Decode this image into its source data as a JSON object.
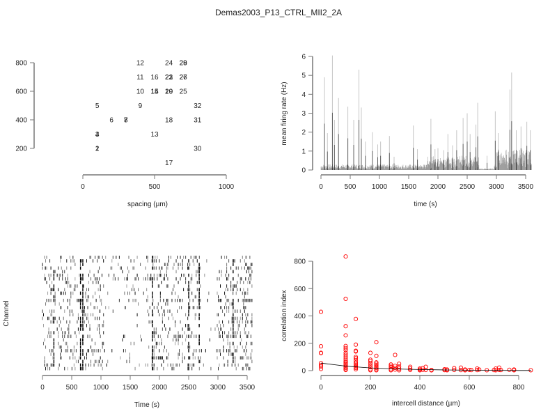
{
  "title": "Demas2003_P13_CTRL_MII2_2A",
  "chart_data": [
    {
      "type": "scatter",
      "name": "electrode-layout",
      "xlabel": "spacing (µm)",
      "ylabel": "",
      "xlim": [
        0,
        1000
      ],
      "ylim": [
        100,
        800
      ],
      "xticks": [
        0,
        500,
        1000
      ],
      "yticks": [
        200,
        400,
        600,
        800
      ],
      "points": [
        {
          "label": "1",
          "x": 100,
          "y": 200
        },
        {
          "label": "2",
          "x": 100,
          "y": 200
        },
        {
          "label": "3",
          "x": 100,
          "y": 300
        },
        {
          "label": "4",
          "x": 100,
          "y": 300
        },
        {
          "label": "5",
          "x": 100,
          "y": 500
        },
        {
          "label": "6",
          "x": 200,
          "y": 400
        },
        {
          "label": "7",
          "x": 300,
          "y": 400
        },
        {
          "label": "8",
          "x": 300,
          "y": 400
        },
        {
          "label": "9",
          "x": 400,
          "y": 500
        },
        {
          "label": "10",
          "x": 400,
          "y": 600
        },
        {
          "label": "11",
          "x": 400,
          "y": 700
        },
        {
          "label": "12",
          "x": 400,
          "y": 800
        },
        {
          "label": "13",
          "x": 500,
          "y": 300
        },
        {
          "label": "14",
          "x": 500,
          "y": 600
        },
        {
          "label": "15",
          "x": 500,
          "y": 600
        },
        {
          "label": "16",
          "x": 500,
          "y": 700
        },
        {
          "label": "17",
          "x": 600,
          "y": 100
        },
        {
          "label": "18",
          "x": 600,
          "y": 400
        },
        {
          "label": "19",
          "x": 600,
          "y": 600
        },
        {
          "label": "20",
          "x": 600,
          "y": 600
        },
        {
          "label": "21",
          "x": 600,
          "y": 700
        },
        {
          "label": "22",
          "x": 600,
          "y": 700
        },
        {
          "label": "23",
          "x": 600,
          "y": 700
        },
        {
          "label": "24",
          "x": 600,
          "y": 800
        },
        {
          "label": "25",
          "x": 700,
          "y": 600
        },
        {
          "label": "26",
          "x": 700,
          "y": 700
        },
        {
          "label": "27",
          "x": 700,
          "y": 700
        },
        {
          "label": "28",
          "x": 700,
          "y": 800
        },
        {
          "label": "29",
          "x": 700,
          "y": 800
        },
        {
          "label": "30",
          "x": 800,
          "y": 200
        },
        {
          "label": "31",
          "x": 800,
          "y": 400
        },
        {
          "label": "32",
          "x": 800,
          "y": 500
        }
      ]
    },
    {
      "type": "bar",
      "name": "mean-firing-rate",
      "xlabel": "time (s)",
      "ylabel": "mean firing rate (Hz)",
      "xlim": [
        0,
        3600
      ],
      "ylim": [
        0,
        6
      ],
      "xticks": [
        0,
        500,
        1000,
        1500,
        2000,
        2500,
        3000,
        3500
      ],
      "yticks": [
        0,
        1,
        2,
        3,
        4,
        5,
        6
      ],
      "peaks": [
        {
          "t": 60,
          "v": 4.9
        },
        {
          "t": 110,
          "v": 1.95
        },
        {
          "t": 195,
          "v": 6.05
        },
        {
          "t": 230,
          "v": 2.65
        },
        {
          "t": 300,
          "v": 3.8
        },
        {
          "t": 460,
          "v": 3.35
        },
        {
          "t": 560,
          "v": 2.65
        },
        {
          "t": 650,
          "v": 5.3
        },
        {
          "t": 690,
          "v": 3.3
        },
        {
          "t": 760,
          "v": 1.5
        },
        {
          "t": 880,
          "v": 2.0
        },
        {
          "t": 970,
          "v": 1.35
        },
        {
          "t": 1020,
          "v": 1.5
        },
        {
          "t": 1170,
          "v": 1.8
        },
        {
          "t": 1250,
          "v": 0.7
        },
        {
          "t": 1580,
          "v": 2.35
        },
        {
          "t": 1650,
          "v": 1.1
        },
        {
          "t": 1880,
          "v": 2.7
        },
        {
          "t": 1950,
          "v": 1.1
        },
        {
          "t": 2000,
          "v": 1.15
        },
        {
          "t": 2100,
          "v": 1.05
        },
        {
          "t": 2170,
          "v": 1.9
        },
        {
          "t": 2250,
          "v": 1.3
        },
        {
          "t": 2320,
          "v": 2.1
        },
        {
          "t": 2430,
          "v": 2.75
        },
        {
          "t": 2500,
          "v": 3.0
        },
        {
          "t": 2550,
          "v": 1.9
        },
        {
          "t": 2650,
          "v": 2.4
        },
        {
          "t": 2680,
          "v": 3.55
        },
        {
          "t": 2840,
          "v": 0.75
        },
        {
          "t": 2980,
          "v": 3.1
        },
        {
          "t": 3030,
          "v": 1.95
        },
        {
          "t": 3230,
          "v": 4.25
        },
        {
          "t": 3260,
          "v": 5.15
        },
        {
          "t": 3340,
          "v": 2.1
        },
        {
          "t": 3420,
          "v": 2.3
        },
        {
          "t": 3520,
          "v": 2.55
        },
        {
          "t": 3580,
          "v": 2.1
        }
      ]
    },
    {
      "type": "raster",
      "name": "spike-raster",
      "xlabel": "Time (s)",
      "ylabel": "Channel",
      "xlim": [
        0,
        3600
      ],
      "xticks": [
        0,
        500,
        1000,
        1500,
        2000,
        2500,
        3000,
        3500
      ],
      "channels": 32
    },
    {
      "type": "scatter",
      "name": "correlation-index",
      "xlabel": "intercell distance (µm)",
      "ylabel": "correlation index",
      "xlim": [
        0,
        850
      ],
      "ylim": [
        0,
        830
      ],
      "xticks": [
        0,
        200,
        400,
        600,
        800
      ],
      "yticks": [
        0,
        200,
        400,
        600,
        800
      ],
      "point_color": "#ff0000",
      "points": [
        [
          0,
          430
        ],
        [
          0,
          178
        ],
        [
          0,
          130
        ],
        [
          0,
          128
        ],
        [
          0,
          55
        ],
        [
          0,
          40
        ],
        [
          0,
          30
        ],
        [
          0,
          12
        ],
        [
          100,
          835
        ],
        [
          100,
          525
        ],
        [
          100,
          325
        ],
        [
          100,
          258
        ],
        [
          100,
          180
        ],
        [
          100,
          165
        ],
        [
          100,
          150
        ],
        [
          100,
          130
        ],
        [
          100,
          115
        ],
        [
          100,
          100
        ],
        [
          100,
          85
        ],
        [
          100,
          70
        ],
        [
          100,
          60
        ],
        [
          100,
          50
        ],
        [
          100,
          40
        ],
        [
          100,
          30
        ],
        [
          100,
          20
        ],
        [
          100,
          10
        ],
        [
          100,
          5
        ],
        [
          141,
          378
        ],
        [
          141,
          190
        ],
        [
          141,
          145
        ],
        [
          141,
          140
        ],
        [
          141,
          100
        ],
        [
          141,
          90
        ],
        [
          141,
          75
        ],
        [
          141,
          60
        ],
        [
          141,
          50
        ],
        [
          141,
          40
        ],
        [
          141,
          30
        ],
        [
          141,
          20
        ],
        [
          141,
          10
        ],
        [
          200,
          130
        ],
        [
          200,
          80
        ],
        [
          200,
          70
        ],
        [
          200,
          55
        ],
        [
          200,
          40
        ],
        [
          200,
          25
        ],
        [
          200,
          10
        ],
        [
          200,
          3
        ],
        [
          224,
          208
        ],
        [
          224,
          108
        ],
        [
          224,
          60
        ],
        [
          224,
          50
        ],
        [
          224,
          40
        ],
        [
          224,
          30
        ],
        [
          224,
          20
        ],
        [
          224,
          10
        ],
        [
          224,
          3
        ],
        [
          283,
          45
        ],
        [
          283,
          35
        ],
        [
          283,
          25
        ],
        [
          283,
          10
        ],
        [
          283,
          3
        ],
        [
          300,
          115
        ],
        [
          300,
          35
        ],
        [
          300,
          20
        ],
        [
          300,
          8
        ],
        [
          316,
          50
        ],
        [
          316,
          30
        ],
        [
          316,
          15
        ],
        [
          316,
          3
        ],
        [
          361,
          28
        ],
        [
          361,
          15
        ],
        [
          361,
          5
        ],
        [
          400,
          15
        ],
        [
          400,
          8
        ],
        [
          400,
          3
        ],
        [
          412,
          18
        ],
        [
          412,
          6
        ],
        [
          424,
          28
        ],
        [
          424,
          5
        ],
        [
          447,
          5
        ],
        [
          447,
          2
        ],
        [
          500,
          10
        ],
        [
          500,
          4
        ],
        [
          510,
          8
        ],
        [
          510,
          3
        ],
        [
          539,
          18
        ],
        [
          539,
          5
        ],
        [
          566,
          22
        ],
        [
          566,
          4
        ],
        [
          583,
          8
        ],
        [
          583,
          3
        ],
        [
          600,
          5
        ],
        [
          608,
          4
        ],
        [
          632,
          15
        ],
        [
          632,
          4
        ],
        [
          640,
          8
        ],
        [
          671,
          3
        ],
        [
          700,
          4
        ],
        [
          707,
          15
        ],
        [
          707,
          3
        ],
        [
          721,
          22
        ],
        [
          721,
          5
        ],
        [
          728,
          4
        ],
        [
          762,
          6
        ],
        [
          781,
          8
        ],
        [
          781,
          3
        ],
        [
          849,
          3
        ]
      ],
      "fit_curve": [
        [
          0,
          55
        ],
        [
          100,
          33
        ],
        [
          200,
          20
        ],
        [
          300,
          12
        ],
        [
          400,
          8
        ],
        [
          500,
          5
        ],
        [
          600,
          3
        ],
        [
          700,
          2
        ],
        [
          800,
          1
        ],
        [
          850,
          1
        ]
      ]
    }
  ]
}
